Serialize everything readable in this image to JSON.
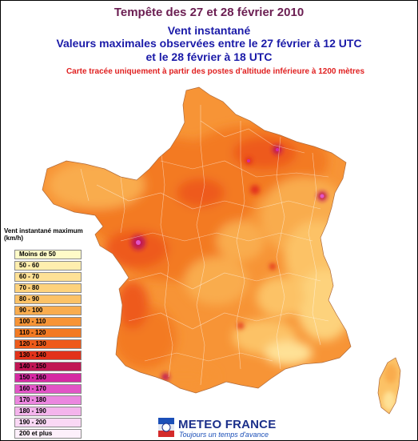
{
  "header": {
    "title": "Tempête des 27 et 28 février 2010",
    "subtitle_1": "Vent instantané",
    "subtitle_2": "Valeurs maximales observées  entre le 27 février à 12 UTC",
    "subtitle_3": "et le 28 février à 18 UTC",
    "note": "Carte tracée uniquement à partir des postes d'altitude inférieure à 1200 mètres"
  },
  "legend": {
    "title": "Vent instantané maximum (km/h)",
    "items": [
      {
        "label": "Moins de 50",
        "color": "#fffbc8"
      },
      {
        "label": "50 - 60",
        "color": "#ffeeae"
      },
      {
        "label": "60 - 70",
        "color": "#fee196"
      },
      {
        "label": "70 - 80",
        "color": "#fdd27c"
      },
      {
        "label": "80 - 90",
        "color": "#fcc266"
      },
      {
        "label": "90 - 100",
        "color": "#f9ac4e"
      },
      {
        "label": "100 - 110",
        "color": "#f79436"
      },
      {
        "label": "110 - 120",
        "color": "#f37a22"
      },
      {
        "label": "120 - 130",
        "color": "#ee5a1a"
      },
      {
        "label": "130 - 140",
        "color": "#e2321a"
      },
      {
        "label": "140 - 150",
        "color": "#c01654"
      },
      {
        "label": "150 - 160",
        "color": "#d52aa2"
      },
      {
        "label": "160 - 170",
        "color": "#e254c6"
      },
      {
        "label": "170 - 180",
        "color": "#eb86df"
      },
      {
        "label": "180 - 190",
        "color": "#f4b4ec"
      },
      {
        "label": "190 - 200",
        "color": "#fad8f5"
      },
      {
        "label": "200 et plus",
        "color": "#fdf0fb"
      }
    ]
  },
  "logo": {
    "name": "METEO FRANCE",
    "tagline": "Toujours un temps d'avance",
    "color": "#1b2f8a"
  }
}
